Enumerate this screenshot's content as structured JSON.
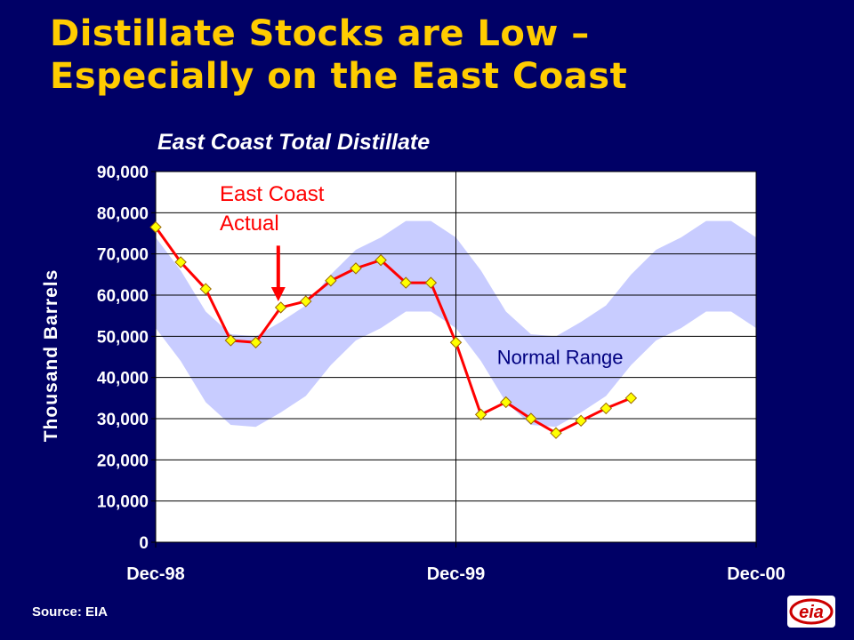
{
  "slide": {
    "title_line1": "Distillate Stocks are Low –",
    "title_line2": "Especially on the East Coast",
    "source": "Source: EIA",
    "logo_name": "eia-logo-icon",
    "logo_text": "eia"
  },
  "colors": {
    "background": "#000066",
    "title": "#FFCC00",
    "plot_bg": "#FFFFFF",
    "band": "#C8CCFF",
    "actual_line": "#FF0000",
    "marker_fill": "#FFFF00",
    "marker_stroke": "#996600",
    "annotation_actual": "#FF0000",
    "annotation_range": "#000080",
    "logo": "#CC0000"
  },
  "chart_data": {
    "type": "line",
    "title": "East Coast Total Distillate",
    "xlabel": "",
    "ylabel": "Thousand Barrels",
    "ylim": [
      0,
      90000
    ],
    "yticks": [
      0,
      10000,
      20000,
      30000,
      40000,
      50000,
      60000,
      70000,
      80000,
      90000
    ],
    "ytick_labels": [
      "0",
      "10,000",
      "20,000",
      "30,000",
      "40,000",
      "50,000",
      "60,000",
      "70,000",
      "80,000",
      "90,000"
    ],
    "xlim": [
      0,
      24
    ],
    "xticks": [
      0,
      12,
      24
    ],
    "xtick_labels": [
      "Dec-98",
      "Dec-99",
      "Dec-00"
    ],
    "grid": "horizontal-and-vertical",
    "series": [
      {
        "name": "Normal Range",
        "kind": "band",
        "x": [
          0,
          1,
          2,
          3,
          4,
          5,
          6,
          7,
          8,
          9,
          10,
          11,
          12,
          13,
          14,
          15,
          16,
          17,
          18,
          19,
          20,
          21,
          22,
          23,
          24
        ],
        "lower": [
          52000,
          44000,
          34000,
          28500,
          28000,
          31500,
          35500,
          43000,
          49000,
          52000,
          56000,
          56000,
          52000,
          44000,
          34000,
          28500,
          28000,
          31500,
          35500,
          43000,
          49000,
          52000,
          56000,
          56000,
          52000
        ],
        "upper": [
          74000,
          66000,
          56000,
          50500,
          50000,
          53500,
          57500,
          65000,
          71000,
          74000,
          78000,
          78000,
          74000,
          66000,
          56000,
          50500,
          50000,
          53500,
          57500,
          65000,
          71000,
          74000,
          78000,
          78000,
          74000
        ]
      },
      {
        "name": "East Coast Actual",
        "kind": "line",
        "x": [
          0,
          1,
          2,
          3,
          4,
          5,
          6,
          7,
          8,
          9,
          10,
          11,
          12,
          13,
          14,
          15,
          16,
          17,
          18,
          19
        ],
        "values": [
          76500,
          68000,
          61500,
          49000,
          48500,
          57000,
          58500,
          63500,
          66500,
          68500,
          63000,
          63000,
          48500,
          31000,
          34000,
          30000,
          26500,
          29500,
          32500,
          35000
        ]
      }
    ],
    "annotations": [
      {
        "name": "actual-label",
        "line1": "East Coast",
        "line2": "Actual",
        "arrow_x": 4.9,
        "arrow_from": 72000,
        "arrow_to": 58500
      },
      {
        "name": "normal-range-label",
        "text": "Normal Range",
        "x": 13.5,
        "y": 45000
      }
    ]
  }
}
